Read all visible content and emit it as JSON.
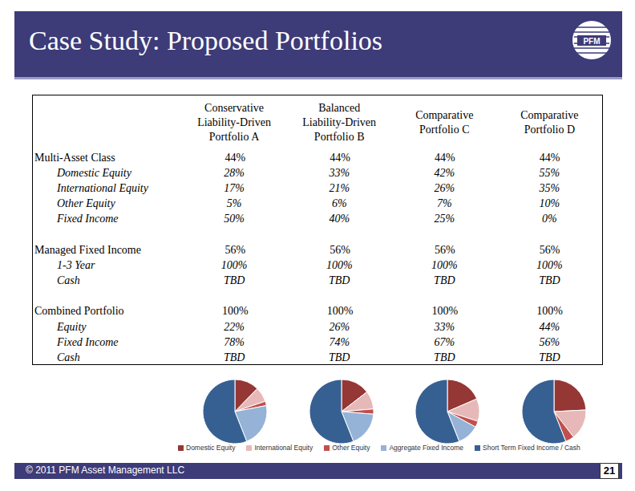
{
  "header": {
    "title": "Case Study: Proposed Portfolios",
    "logo": "PFM"
  },
  "table": {
    "columns": [
      [
        "Conservative",
        "Liability-Driven",
        "Portfolio A"
      ],
      [
        "Balanced",
        "Liability-Driven",
        "Portfolio B"
      ],
      [
        "Comparative",
        "Portfolio C"
      ],
      [
        "Comparative",
        "Portfolio D"
      ]
    ],
    "groups": [
      {
        "label": "Multi-Asset Class",
        "values": [
          "44%",
          "44%",
          "44%",
          "44%"
        ],
        "items": [
          {
            "label": "Domestic Equity",
            "values": [
              "28%",
              "33%",
              "42%",
              "55%"
            ]
          },
          {
            "label": "International Equity",
            "values": [
              "17%",
              "21%",
              "26%",
              "35%"
            ]
          },
          {
            "label": "Other Equity",
            "values": [
              "5%",
              "6%",
              "7%",
              "10%"
            ]
          },
          {
            "label": "Fixed Income",
            "values": [
              "50%",
              "40%",
              "25%",
              "0%"
            ]
          }
        ]
      },
      {
        "label": "Managed Fixed Income",
        "values": [
          "56%",
          "56%",
          "56%",
          "56%"
        ],
        "items": [
          {
            "label": "1-3 Year",
            "values": [
              "100%",
              "100%",
              "100%",
              "100%"
            ]
          },
          {
            "label": "Cash",
            "values": [
              "TBD",
              "TBD",
              "TBD",
              "TBD"
            ]
          }
        ]
      },
      {
        "label": "Combined Portfolio",
        "values": [
          "100%",
          "100%",
          "100%",
          "100%"
        ],
        "items": [
          {
            "label": "Equity",
            "values": [
              "22%",
              "26%",
              "33%",
              "44%"
            ]
          },
          {
            "label": "Fixed Income",
            "values": [
              "78%",
              "74%",
              "67%",
              "56%"
            ]
          },
          {
            "label": "Cash",
            "values": [
              "TBD",
              "TBD",
              "TBD",
              "TBD"
            ]
          }
        ]
      }
    ]
  },
  "chart_data": [
    {
      "type": "pie",
      "legend": "bottom",
      "categories": [
        "Domestic Equity",
        "International Equity",
        "Other Equity",
        "Aggregate Fixed Income",
        "Short Term Fixed Income / Cash"
      ],
      "values": [
        12.3,
        7.5,
        2.2,
        22,
        56
      ],
      "colors": [
        "#953735",
        "#e6b9b8",
        "#c0504d",
        "#95b3d7",
        "#376092"
      ]
    },
    {
      "type": "pie",
      "categories": [
        "Domestic Equity",
        "International Equity",
        "Other Equity",
        "Aggregate Fixed Income",
        "Short Term Fixed Income / Cash"
      ],
      "values": [
        14.5,
        9.2,
        2.6,
        17.6,
        56
      ],
      "colors": [
        "#953735",
        "#e6b9b8",
        "#c0504d",
        "#95b3d7",
        "#376092"
      ]
    },
    {
      "type": "pie",
      "categories": [
        "Domestic Equity",
        "International Equity",
        "Other Equity",
        "Aggregate Fixed Income",
        "Short Term Fixed Income / Cash"
      ],
      "values": [
        18.5,
        11.4,
        3.1,
        11,
        56
      ],
      "colors": [
        "#953735",
        "#e6b9b8",
        "#c0504d",
        "#95b3d7",
        "#376092"
      ]
    },
    {
      "type": "pie",
      "categories": [
        "Domestic Equity",
        "International Equity",
        "Other Equity",
        "Aggregate Fixed Income",
        "Short Term Fixed Income / Cash"
      ],
      "values": [
        24.2,
        15.4,
        4.4,
        0,
        56
      ],
      "colors": [
        "#953735",
        "#e6b9b8",
        "#c0504d",
        "#95b3d7",
        "#376092"
      ]
    }
  ],
  "footer": {
    "copyright": "© 2011 PFM Asset Management LLC",
    "page": "21"
  }
}
